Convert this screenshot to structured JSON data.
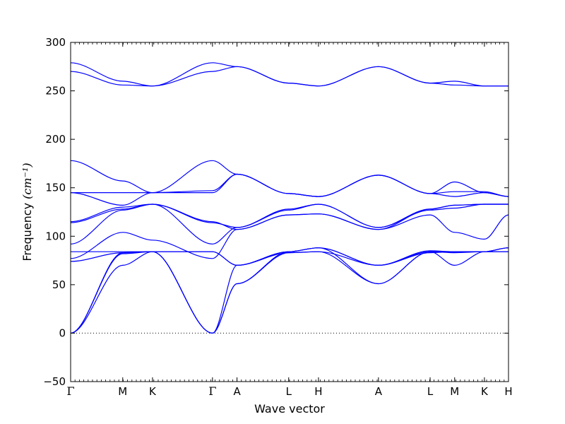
{
  "chart_data": {
    "type": "line",
    "title": "",
    "xlabel": "Wave vector",
    "ylabel": "Frequency ",
    "ylabel_unit": "(cm⁻¹)",
    "ylim": [
      -50,
      300
    ],
    "xlim": [
      0,
      1
    ],
    "y_ticks": [
      -50,
      0,
      50,
      100,
      150,
      200,
      250,
      300
    ],
    "y_tick_labels": [
      "−50",
      "0",
      "50",
      "100",
      "150",
      "200",
      "250",
      "300"
    ],
    "zero_line": true,
    "grid": false,
    "line_color": "#0000ff",
    "k_points": [
      {
        "label": "Γ",
        "x": 0.0
      },
      {
        "label": "M",
        "x": 0.119
      },
      {
        "label": "K",
        "x": 0.187
      },
      {
        "label": "Γ",
        "x": 0.324
      },
      {
        "label": "A",
        "x": 0.38
      },
      {
        "label": "L",
        "x": 0.498
      },
      {
        "label": "H",
        "x": 0.566
      },
      {
        "label": "A",
        "x": 0.703
      },
      {
        "label": "L",
        "x": 0.821
      },
      {
        "label": "M",
        "x": 0.877
      },
      {
        "label": "K",
        "x": 0.945
      },
      {
        "label": "H",
        "x": 1.0
      }
    ],
    "series": [
      {
        "x": [
          0,
          0.119,
          0.187,
          0.324,
          0.38,
          0.498,
          0.566,
          0.703,
          0.821,
          0.877,
          0.945,
          1.0
        ],
        "y": [
          0,
          70,
          84,
          0,
          70,
          83,
          84,
          70,
          84,
          70,
          84,
          88
        ]
      },
      {
        "x": [
          0,
          0.119,
          0.187,
          0.324,
          0.38,
          0.498,
          0.566,
          0.703,
          0.821,
          0.877,
          0.945,
          1.0
        ],
        "y": [
          0,
          82,
          84,
          0,
          51,
          83,
          84,
          51,
          84,
          83,
          84,
          84
        ]
      },
      {
        "x": [
          0,
          0.119,
          0.187,
          0.324,
          0.38,
          0.498,
          0.566,
          0.703,
          0.821,
          0.877,
          0.945,
          1.0
        ],
        "y": [
          0,
          83,
          84,
          0,
          51,
          84,
          88,
          51,
          84,
          84,
          84,
          84
        ]
      },
      {
        "x": [
          0,
          0.119,
          0.187,
          0.324,
          0.38,
          0.498,
          0.566,
          0.703,
          0.821,
          0.877,
          0.945,
          1.0
        ],
        "y": [
          74,
          83,
          84,
          84,
          70,
          84,
          88,
          70,
          85,
          84,
          84,
          88
        ]
      },
      {
        "x": [
          0,
          0.119,
          0.187,
          0.324,
          0.38,
          0.498,
          0.566,
          0.703,
          0.821,
          0.877,
          0.945,
          1.0
        ],
        "y": [
          84,
          84,
          84,
          84,
          70,
          84,
          88,
          70,
          83,
          84,
          84,
          88
        ]
      },
      {
        "x": [
          0,
          0.119,
          0.187,
          0.324,
          0.38,
          0.498,
          0.566,
          0.703,
          0.821,
          0.877,
          0.945,
          1.0
        ],
        "y": [
          77,
          104,
          96,
          77,
          107,
          122,
          123,
          107,
          122,
          104,
          97,
          122
        ]
      },
      {
        "x": [
          0,
          0.119,
          0.187,
          0.324,
          0.38,
          0.498,
          0.566,
          0.703,
          0.821,
          0.877,
          0.945,
          1.0
        ],
        "y": [
          92,
          127,
          133,
          92,
          109,
          127,
          133,
          109,
          127,
          129,
          133,
          133
        ]
      },
      {
        "x": [
          0,
          0.119,
          0.187,
          0.324,
          0.38,
          0.498,
          0.566,
          0.703,
          0.821,
          0.877,
          0.945,
          1.0
        ],
        "y": [
          114,
          128,
          133,
          114,
          109,
          128,
          133,
          109,
          128,
          132,
          133,
          133
        ]
      },
      {
        "x": [
          0,
          0.119,
          0.187,
          0.324,
          0.38,
          0.498,
          0.566,
          0.703,
          0.821,
          0.877,
          0.945,
          1.0
        ],
        "y": [
          115,
          130,
          133,
          115,
          107,
          122,
          123,
          107,
          128,
          132,
          133,
          133
        ]
      },
      {
        "x": [
          0,
          0.119,
          0.187,
          0.324,
          0.38,
          0.498,
          0.566,
          0.703,
          0.821,
          0.877,
          0.945,
          1.0
        ],
        "y": [
          145,
          132,
          145,
          147,
          164,
          144,
          141,
          163,
          144,
          156,
          145,
          141
        ]
      },
      {
        "x": [
          0,
          0.119,
          0.187,
          0.324,
          0.38,
          0.498,
          0.566,
          0.703,
          0.821,
          0.877,
          0.945,
          1.0
        ],
        "y": [
          145,
          145,
          145,
          145,
          164,
          144,
          141,
          163,
          144,
          146,
          146,
          141
        ]
      },
      {
        "x": [
          0,
          0.119,
          0.187,
          0.324,
          0.38,
          0.498,
          0.566,
          0.703,
          0.821,
          0.877,
          0.945,
          1.0
        ],
        "y": [
          178,
          157,
          145,
          178,
          164,
          144,
          141,
          163,
          144,
          141,
          145,
          141
        ]
      },
      {
        "x": [
          0,
          0.119,
          0.187,
          0.324,
          0.38,
          0.498,
          0.566,
          0.703,
          0.821,
          0.877,
          0.945,
          1.0
        ],
        "y": [
          270,
          256,
          255,
          270,
          275,
          258,
          255,
          275,
          258,
          256,
          255,
          255
        ]
      },
      {
        "x": [
          0,
          0.119,
          0.187,
          0.324,
          0.38,
          0.498,
          0.566,
          0.703,
          0.821,
          0.877,
          0.945,
          1.0
        ],
        "y": [
          279,
          260,
          255,
          279,
          275,
          258,
          255,
          275,
          258,
          260,
          255,
          255
        ]
      }
    ]
  }
}
